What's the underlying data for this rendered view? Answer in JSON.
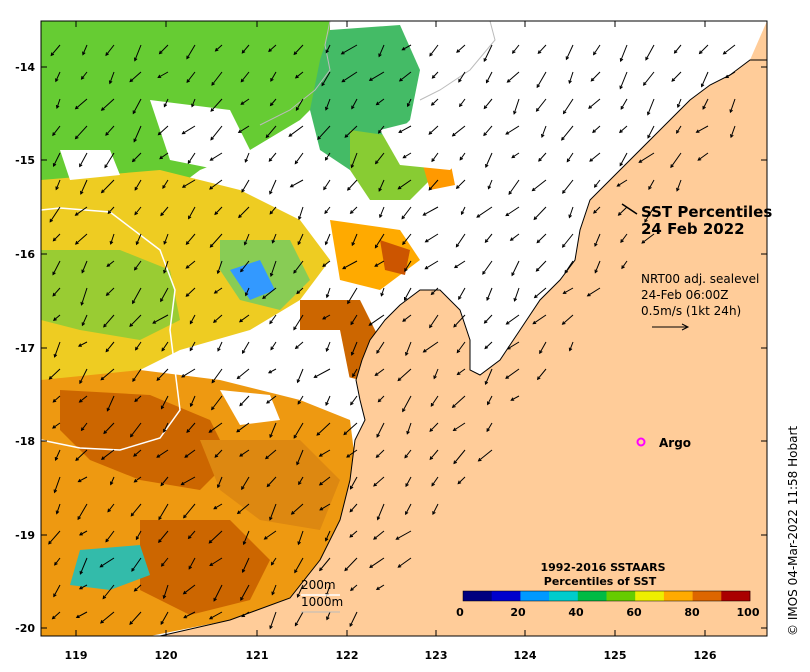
{
  "map": {
    "title_line1": "SST Percentiles",
    "title_line2": "24 Feb 2022",
    "current_product": "NRT00 adj. sealevel",
    "current_time": "24-Feb 06:00Z",
    "current_scale": "0.5m/s (1kt 24h)",
    "argo_label": "Argo",
    "argo_marker_color": "#ff00ff",
    "contour_200": "200m",
    "contour_1000": "1000m",
    "credit": "© IMOS 04-Mar-2022 11:58 Hobart",
    "land_color": "#ffcc99",
    "x_ticks": [
      "119",
      "120",
      "121",
      "122",
      "123",
      "124",
      "125",
      "126"
    ],
    "y_ticks": [
      "-14",
      "-15",
      "-16",
      "-17",
      "-18",
      "-19",
      "-20"
    ]
  },
  "colorbar": {
    "title_line1": "1992-2016 SSTAARS",
    "title_line2": "Percentiles of SST",
    "ticks": [
      "0",
      "20",
      "40",
      "60",
      "80",
      "100"
    ],
    "colors": [
      "#00007f",
      "#0000cc",
      "#0099ff",
      "#00cccc",
      "#00bb44",
      "#66cc00",
      "#eeee00",
      "#ffaa00",
      "#dd6600",
      "#aa0000"
    ]
  }
}
